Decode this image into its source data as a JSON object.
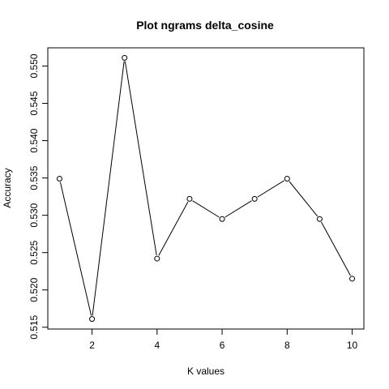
{
  "chart_data": {
    "type": "line",
    "title": "Plot ngrams delta_cosine",
    "xlabel": "K values",
    "ylabel": "Accuracy",
    "x": [
      1,
      2,
      3,
      4,
      5,
      6,
      7,
      8,
      9,
      10
    ],
    "series": [
      {
        "values": [
          0.5349,
          0.5161,
          0.5511,
          0.5242,
          0.5322,
          0.5295,
          0.5322,
          0.5349,
          0.5295,
          0.5215
        ]
      }
    ],
    "xticks": [
      2,
      4,
      6,
      8,
      10
    ],
    "xtick_labels": [
      "2",
      "4",
      "6",
      "8",
      "10"
    ],
    "yticks": [
      0.515,
      0.52,
      0.525,
      0.53,
      0.535,
      0.54,
      0.545,
      0.55
    ],
    "ytick_labels": [
      "0.515",
      "0.520",
      "0.525",
      "0.530",
      "0.535",
      "0.540",
      "0.545",
      "0.550"
    ],
    "xlim": [
      0.64,
      10.36
    ],
    "ylim": [
      0.51476,
      0.55244
    ],
    "grid": false,
    "line_color": "#000000",
    "marker": "open-circle"
  }
}
